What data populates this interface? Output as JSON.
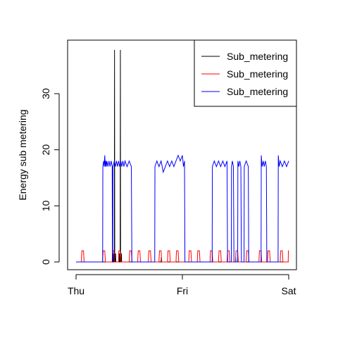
{
  "chart_data": {
    "type": "line",
    "ylabel": "Energy sub metering",
    "xlabel": "",
    "xlim": [
      0,
      2
    ],
    "ylim": [
      -1.52,
      39.52
    ],
    "grid": false,
    "legend_position": "top-right",
    "x_ticks": [
      {
        "value": 0,
        "label": "Thu"
      },
      {
        "value": 1,
        "label": "Fri"
      },
      {
        "value": 2,
        "label": "Sat"
      }
    ],
    "y_ticks": [
      {
        "value": 0,
        "label": "0"
      },
      {
        "value": 10,
        "label": "10"
      },
      {
        "value": 20,
        "label": "20"
      },
      {
        "value": 30,
        "label": "30"
      }
    ],
    "series": [
      {
        "name": "Sub_metering",
        "color": "#000000",
        "points": [
          [
            0,
            0
          ],
          [
            0.35,
            0
          ],
          [
            0.352,
            1.5
          ],
          [
            0.354,
            0
          ],
          [
            0.36,
            0
          ],
          [
            0.362,
            37.8
          ],
          [
            0.364,
            0
          ],
          [
            0.37,
            0
          ],
          [
            0.372,
            1.5
          ],
          [
            0.374,
            0
          ],
          [
            0.405,
            0
          ],
          [
            0.407,
            1.5
          ],
          [
            0.409,
            0
          ],
          [
            0.415,
            0
          ],
          [
            0.417,
            37.8
          ],
          [
            0.419,
            0
          ],
          [
            0.425,
            0
          ],
          [
            0.427,
            1.5
          ],
          [
            0.429,
            0
          ],
          [
            0.8,
            0
          ],
          [
            0.802,
            0.8
          ],
          [
            0.804,
            0
          ],
          [
            1.5,
            0
          ],
          [
            1.502,
            0.8
          ],
          [
            1.504,
            0
          ],
          [
            2,
            0
          ]
        ]
      },
      {
        "name": "Sub_metering",
        "color": "#ff0000",
        "points": [
          [
            0,
            0
          ],
          [
            0.05,
            0
          ],
          [
            0.052,
            1
          ],
          [
            0.055,
            2
          ],
          [
            0.07,
            2
          ],
          [
            0.073,
            1
          ],
          [
            0.076,
            0
          ],
          [
            0.25,
            0
          ],
          [
            0.252,
            1
          ],
          [
            0.255,
            2
          ],
          [
            0.27,
            2
          ],
          [
            0.273,
            1
          ],
          [
            0.276,
            0
          ],
          [
            0.34,
            0
          ],
          [
            0.342,
            2
          ],
          [
            0.356,
            2
          ],
          [
            0.359,
            0
          ],
          [
            0.4,
            0
          ],
          [
            0.402,
            2
          ],
          [
            0.416,
            2
          ],
          [
            0.419,
            0
          ],
          [
            0.5,
            0
          ],
          [
            0.502,
            1
          ],
          [
            0.505,
            2
          ],
          [
            0.52,
            2
          ],
          [
            0.523,
            1
          ],
          [
            0.526,
            0
          ],
          [
            0.58,
            0
          ],
          [
            0.582,
            1
          ],
          [
            0.585,
            2
          ],
          [
            0.6,
            2
          ],
          [
            0.603,
            1
          ],
          [
            0.606,
            0
          ],
          [
            0.68,
            0
          ],
          [
            0.682,
            1
          ],
          [
            0.685,
            2
          ],
          [
            0.7,
            2
          ],
          [
            0.703,
            1
          ],
          [
            0.706,
            0
          ],
          [
            0.78,
            0
          ],
          [
            0.782,
            1
          ],
          [
            0.785,
            2
          ],
          [
            0.8,
            2
          ],
          [
            0.803,
            1
          ],
          [
            0.806,
            0
          ],
          [
            0.86,
            0
          ],
          [
            0.862,
            1
          ],
          [
            0.865,
            2
          ],
          [
            0.88,
            2
          ],
          [
            0.883,
            1
          ],
          [
            0.886,
            0
          ],
          [
            0.94,
            0
          ],
          [
            0.942,
            1
          ],
          [
            0.945,
            2
          ],
          [
            0.96,
            2
          ],
          [
            0.963,
            1
          ],
          [
            0.966,
            0
          ],
          [
            1.06,
            0
          ],
          [
            1.062,
            1
          ],
          [
            1.065,
            2
          ],
          [
            1.08,
            2
          ],
          [
            1.083,
            1
          ],
          [
            1.086,
            0
          ],
          [
            1.14,
            0
          ],
          [
            1.142,
            1
          ],
          [
            1.145,
            2
          ],
          [
            1.16,
            2
          ],
          [
            1.163,
            1
          ],
          [
            1.166,
            0
          ],
          [
            1.26,
            0
          ],
          [
            1.262,
            1
          ],
          [
            1.265,
            2
          ],
          [
            1.28,
            2
          ],
          [
            1.283,
            1
          ],
          [
            1.286,
            0
          ],
          [
            1.34,
            0
          ],
          [
            1.342,
            1
          ],
          [
            1.345,
            2
          ],
          [
            1.36,
            2
          ],
          [
            1.363,
            1
          ],
          [
            1.366,
            0
          ],
          [
            1.42,
            0
          ],
          [
            1.422,
            1
          ],
          [
            1.425,
            2
          ],
          [
            1.44,
            2
          ],
          [
            1.443,
            1
          ],
          [
            1.446,
            0
          ],
          [
            1.5,
            0
          ],
          [
            1.502,
            1
          ],
          [
            1.505,
            2
          ],
          [
            1.52,
            2
          ],
          [
            1.523,
            1
          ],
          [
            1.526,
            0
          ],
          [
            1.6,
            0
          ],
          [
            1.602,
            1
          ],
          [
            1.605,
            2
          ],
          [
            1.62,
            2
          ],
          [
            1.623,
            1
          ],
          [
            1.626,
            0
          ],
          [
            1.72,
            0
          ],
          [
            1.722,
            1
          ],
          [
            1.725,
            2
          ],
          [
            1.74,
            2
          ],
          [
            1.743,
            1
          ],
          [
            1.746,
            0
          ],
          [
            1.8,
            0
          ],
          [
            1.802,
            1
          ],
          [
            1.805,
            2
          ],
          [
            1.82,
            2
          ],
          [
            1.823,
            1
          ],
          [
            1.826,
            0
          ],
          [
            1.92,
            0
          ],
          [
            1.922,
            1
          ],
          [
            1.925,
            2
          ],
          [
            1.94,
            2
          ],
          [
            1.943,
            1
          ],
          [
            1.946,
            0
          ],
          [
            1.995,
            0
          ],
          [
            1.997,
            2
          ],
          [
            2,
            2
          ]
        ]
      },
      {
        "name": "Sub_metering",
        "color": "#0000ff",
        "points": [
          [
            0,
            0
          ],
          [
            0.25,
            0
          ],
          [
            0.252,
            17
          ],
          [
            0.26,
            18
          ],
          [
            0.265,
            17
          ],
          [
            0.27,
            19
          ],
          [
            0.275,
            17
          ],
          [
            0.28,
            18
          ],
          [
            0.285,
            17
          ],
          [
            0.29,
            18
          ],
          [
            0.3,
            17
          ],
          [
            0.31,
            18
          ],
          [
            0.32,
            17
          ],
          [
            0.33,
            18
          ],
          [
            0.34,
            17
          ],
          [
            0.342,
            0
          ],
          [
            0.345,
            0
          ],
          [
            0.347,
            17
          ],
          [
            0.36,
            18
          ],
          [
            0.37,
            17
          ],
          [
            0.38,
            18
          ],
          [
            0.39,
            17
          ],
          [
            0.4,
            18
          ],
          [
            0.41,
            17
          ],
          [
            0.42,
            18
          ],
          [
            0.43,
            17
          ],
          [
            0.44,
            18
          ],
          [
            0.45,
            17
          ],
          [
            0.46,
            18
          ],
          [
            0.48,
            17
          ],
          [
            0.5,
            18
          ],
          [
            0.52,
            17
          ],
          [
            0.525,
            0
          ],
          [
            0.74,
            0
          ],
          [
            0.742,
            17
          ],
          [
            0.76,
            18
          ],
          [
            0.78,
            17
          ],
          [
            0.8,
            18
          ],
          [
            0.82,
            16
          ],
          [
            0.84,
            17
          ],
          [
            0.86,
            18
          ],
          [
            0.88,
            17
          ],
          [
            0.9,
            18
          ],
          [
            0.92,
            17
          ],
          [
            0.94,
            18
          ],
          [
            0.96,
            19
          ],
          [
            0.98,
            18
          ],
          [
            1.0,
            19
          ],
          [
            1.01,
            17
          ],
          [
            1.02,
            18
          ],
          [
            1.024,
            0
          ],
          [
            1.28,
            0
          ],
          [
            1.282,
            17
          ],
          [
            1.3,
            18
          ],
          [
            1.32,
            17
          ],
          [
            1.34,
            18
          ],
          [
            1.36,
            17
          ],
          [
            1.38,
            18
          ],
          [
            1.4,
            17
          ],
          [
            1.42,
            18
          ],
          [
            1.425,
            0
          ],
          [
            1.46,
            0
          ],
          [
            1.462,
            17
          ],
          [
            1.47,
            18
          ],
          [
            1.48,
            17
          ],
          [
            1.485,
            0
          ],
          [
            1.52,
            0
          ],
          [
            1.522,
            18
          ],
          [
            1.53,
            17
          ],
          [
            1.54,
            18
          ],
          [
            1.55,
            17
          ],
          [
            1.555,
            0
          ],
          [
            1.58,
            0
          ],
          [
            1.582,
            17
          ],
          [
            1.6,
            18
          ],
          [
            1.62,
            17
          ],
          [
            1.624,
            0
          ],
          [
            1.74,
            0
          ],
          [
            1.742,
            19
          ],
          [
            1.75,
            17
          ],
          [
            1.76,
            18
          ],
          [
            1.77,
            17
          ],
          [
            1.78,
            18
          ],
          [
            1.79,
            17
          ],
          [
            1.794,
            0
          ],
          [
            1.9,
            0
          ],
          [
            1.902,
            19
          ],
          [
            1.91,
            17
          ],
          [
            1.92,
            18
          ],
          [
            1.94,
            17
          ],
          [
            1.96,
            18
          ],
          [
            1.98,
            17
          ],
          [
            2,
            18
          ]
        ]
      }
    ]
  }
}
